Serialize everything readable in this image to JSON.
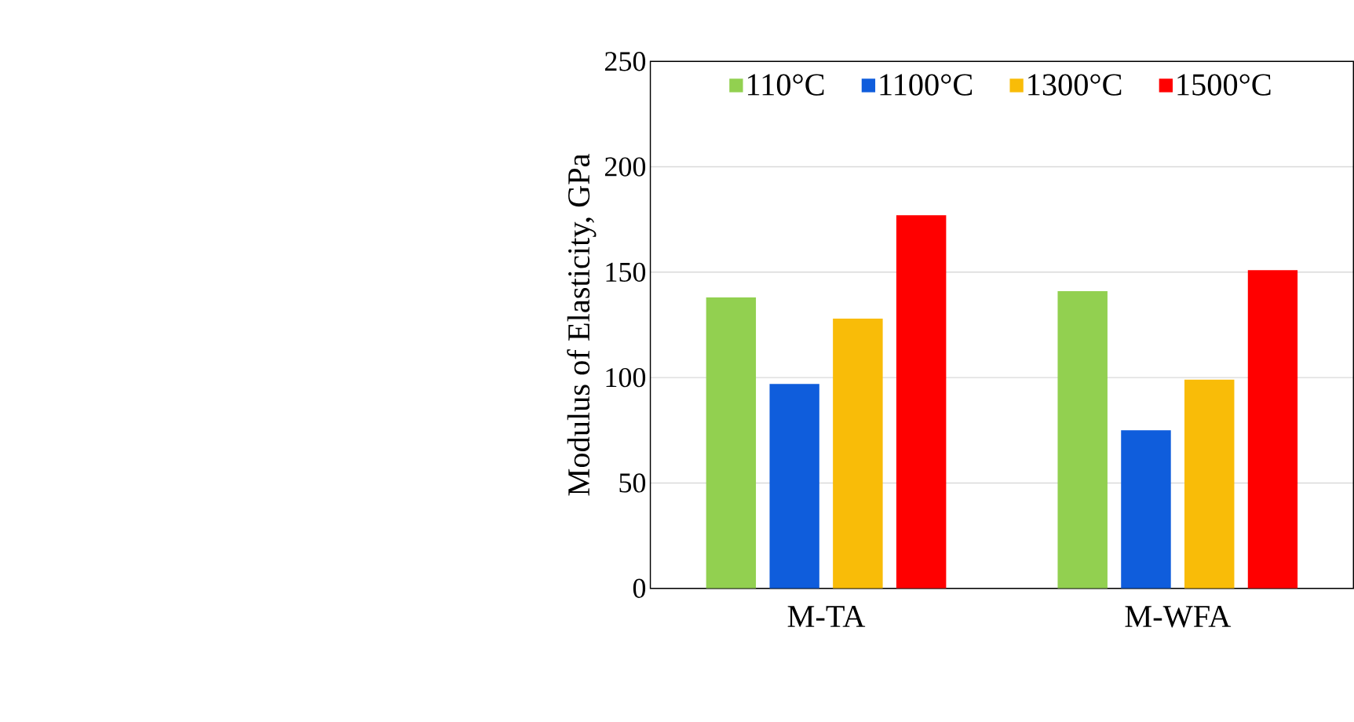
{
  "chart_data": {
    "type": "bar",
    "ylabel": "Modulus of Elasticity,  GPa",
    "categories": [
      "M-TA",
      "M-WFA"
    ],
    "series": [
      {
        "name": "110°C",
        "color": "#92d050",
        "values": [
          138,
          141
        ]
      },
      {
        "name": "1100°C",
        "color": "#0f5ddc",
        "values": [
          97,
          75
        ]
      },
      {
        "name": "1300°C",
        "color": "#f9bc08",
        "values": [
          128,
          99
        ]
      },
      {
        "name": "1500°C",
        "color": "#ff0000",
        "values": [
          177,
          151
        ]
      }
    ],
    "ylim": [
      0,
      250
    ],
    "yticks": [
      0,
      50,
      100,
      150,
      200,
      250
    ],
    "grid": "y",
    "legend": "top"
  }
}
